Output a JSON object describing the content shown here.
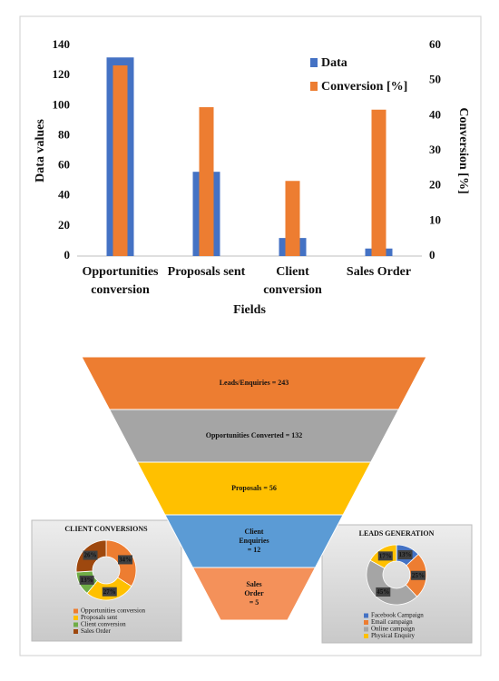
{
  "chart_data": [
    {
      "type": "bar",
      "categories": [
        "Opportunities conversion",
        "Proposals sent",
        "Client conversion",
        "Sales Order"
      ],
      "series": [
        {
          "name": "Data",
          "color": "#4472c4",
          "values": [
            132,
            56,
            12,
            5
          ]
        },
        {
          "name": "Conversion [%]",
          "color": "#ed7d31",
          "axis": "y2",
          "values": [
            54.3,
            42.4,
            21.4,
            41.7
          ]
        }
      ],
      "xlabel": "Fields",
      "ylabel": "Data values",
      "y2label": "Conversion [%]",
      "ylim": [
        0,
        140
      ],
      "yticks": [
        0,
        20,
        40,
        60,
        80,
        100,
        120,
        140
      ],
      "y2lim": [
        0,
        60
      ],
      "y2ticks": [
        0,
        10,
        20,
        30,
        40,
        50,
        60
      ],
      "legend": "top-right"
    },
    {
      "type": "funnel",
      "categories": [
        "Leads/Enquiries",
        "Opportunities Converted",
        "Proposals",
        "Client Enquiries",
        "Sales Order"
      ],
      "values": [
        243,
        132,
        56,
        12,
        5
      ],
      "value_labels": [
        "Leads/Enquiries = 243",
        "Opportunities Converted = 132",
        "Proposals = 56",
        "Client Enquiries = 12",
        "Sales Order = 5"
      ],
      "colors": [
        "#ed7d31",
        "#a5a5a5",
        "#ffc000",
        "#5b9bd5",
        "#f4915a"
      ]
    },
    {
      "type": "donut",
      "title": "CLIENT CONVERSIONS",
      "categories": [
        "Opportunities conversion",
        "Proposals sent",
        "Client conversion",
        "Sales Order"
      ],
      "values": [
        34,
        27,
        13,
        26
      ],
      "value_labels": [
        "34%",
        "27%",
        "13%",
        "26%"
      ],
      "colors": [
        "#ed7d31",
        "#ffc000",
        "#70ad47",
        "#9e480e"
      ]
    },
    {
      "type": "donut",
      "title": "LEADS GENERATION",
      "categories": [
        "Facebook Campaign",
        "Email campaign",
        "Online campaign",
        "Physical Enquiry"
      ],
      "values": [
        13,
        25,
        45,
        17
      ],
      "value_labels": [
        "13%",
        "25%",
        "45%",
        "17%"
      ],
      "colors": [
        "#4472c4",
        "#ed7d31",
        "#a5a5a5",
        "#ffc000"
      ]
    }
  ]
}
